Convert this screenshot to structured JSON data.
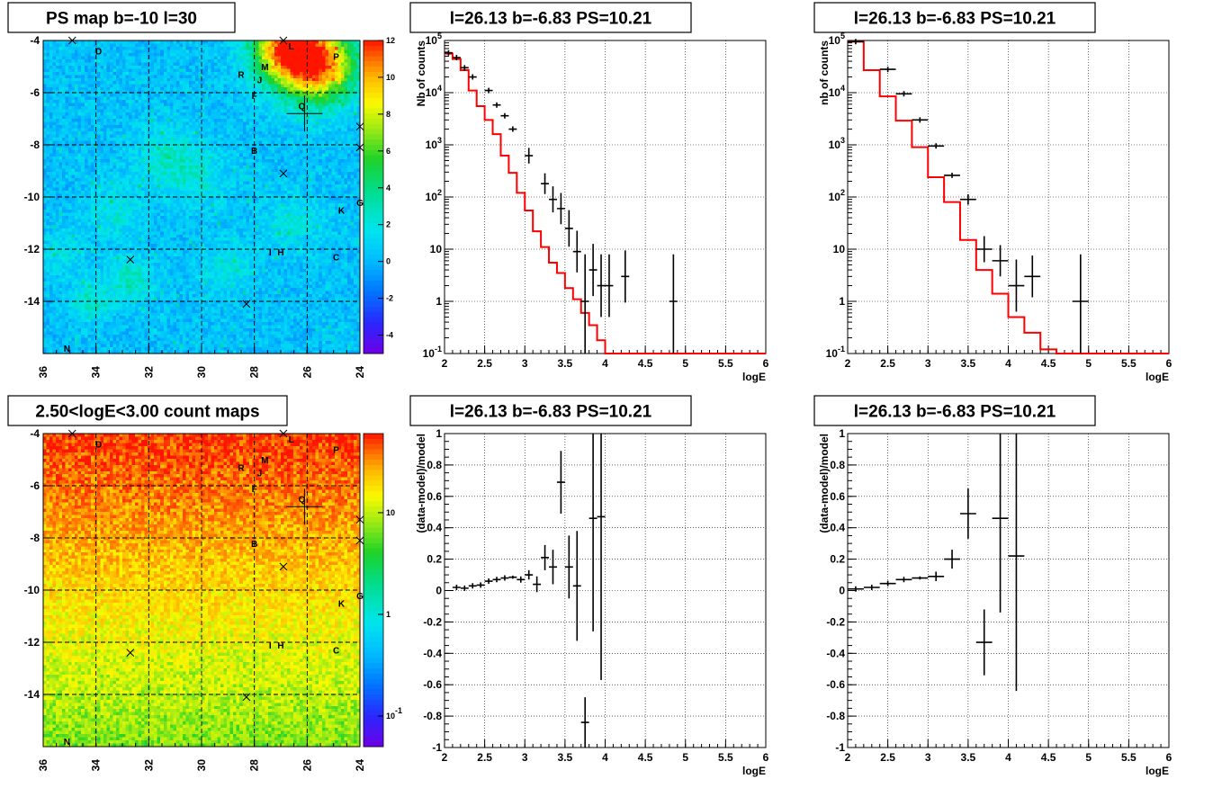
{
  "colors": {
    "hist_model": "#ff0000",
    "data": "#000000",
    "grid": "#000000",
    "frame": "#000000"
  },
  "chart_data": [
    {
      "type": "heatmap",
      "title": "PS map b=-10 l=30",
      "x_ticks": [
        "36",
        "34",
        "32",
        "30",
        "28",
        "26",
        "24"
      ],
      "y_ticks": [
        "-4",
        "-6",
        "-8",
        "-10",
        "-12",
        "-14"
      ],
      "xlim": [
        36,
        24
      ],
      "ylim": [
        -16,
        -4
      ],
      "palette_scale": "linear",
      "colorbar_ticks": [
        "12",
        "10",
        "8",
        "6",
        "4",
        "2",
        "0",
        "-2",
        "-4"
      ],
      "colorbar_range": [
        -5,
        12
      ],
      "sources": [
        {
          "label": "D",
          "l": 33.9,
          "b": -4.4
        },
        {
          "label": "L",
          "l": 26.6,
          "b": -4.2
        },
        {
          "label": "M",
          "l": 27.6,
          "b": -5.0
        },
        {
          "label": "P",
          "l": 24.9,
          "b": -4.6
        },
        {
          "label": "R",
          "l": 28.5,
          "b": -5.3
        },
        {
          "label": "J",
          "l": 27.8,
          "b": -5.5
        },
        {
          "label": "F",
          "l": 28.0,
          "b": -6.1
        },
        {
          "label": "Q",
          "l": 26.2,
          "b": -6.5
        },
        {
          "label": "B",
          "l": 28.0,
          "b": -8.2
        },
        {
          "label": "K",
          "l": 24.7,
          "b": -10.5
        },
        {
          "label": "G",
          "l": 24.0,
          "b": -10.2
        },
        {
          "label": "I",
          "l": 27.4,
          "b": -12.1
        },
        {
          "label": "H",
          "l": 27.0,
          "b": -12.1
        },
        {
          "label": "C",
          "l": 24.9,
          "b": -12.3
        },
        {
          "label": "N",
          "l": 35.1,
          "b": -15.8
        }
      ],
      "markers": [
        {
          "l": 34.9,
          "b": -4.0
        },
        {
          "l": 26.9,
          "b": -4.0
        },
        {
          "l": 26.9,
          "b": -9.1
        },
        {
          "l": 32.7,
          "b": -12.4
        },
        {
          "l": 28.3,
          "b": -14.1
        },
        {
          "l": 24.0,
          "b": -7.3
        },
        {
          "l": 24.0,
          "b": -8.1
        }
      ],
      "crosshair": {
        "l": 26.1,
        "b": -6.8
      }
    },
    {
      "type": "line",
      "title": "l=26.13 b=-6.83 PS=10.21",
      "xlabel": "logE",
      "ylabel": "Nb of counts",
      "xlim": [
        2,
        6
      ],
      "ylim": [
        0.1,
        100000
      ],
      "y_scale": "log",
      "x_ticks": [
        "2",
        "2.5",
        "3",
        "3.5",
        "4",
        "4.5",
        "5",
        "5.5",
        "6"
      ],
      "y_ticks": [
        "10^-1",
        "1",
        "10",
        "10^2",
        "10^3",
        "10^4",
        "10^5"
      ],
      "model_step": {
        "bin_width": 0.1,
        "start": 2.0,
        "values": [
          56000,
          44000,
          27000,
          11000,
          5500,
          3000,
          1600,
          620,
          290,
          120,
          55,
          22,
          11,
          5.5,
          3.5,
          1.8,
          1.1,
          0.6,
          0.35,
          0.18,
          0.1,
          0.1,
          0.1,
          0.1,
          0.1,
          0.1,
          0.1,
          0.1,
          0.1,
          0.1,
          0.1,
          0.1,
          0.1,
          0.1,
          0.1,
          0.1,
          0.1,
          0.1,
          0.1,
          0.1
        ]
      },
      "points": [
        {
          "x": 2.05,
          "y": 58000,
          "dx": 0.05,
          "err": 0
        },
        {
          "x": 2.15,
          "y": 47000,
          "dx": 0.05,
          "err": 0
        },
        {
          "x": 2.25,
          "y": 30000,
          "dx": 0.05,
          "err": 0
        },
        {
          "x": 2.35,
          "y": 20000,
          "dx": 0.05,
          "err": 0
        },
        {
          "x": 2.55,
          "y": 11000,
          "dx": 0.05,
          "err": 0
        },
        {
          "x": 2.65,
          "y": 5800,
          "dx": 0.05,
          "err": 0
        },
        {
          "x": 2.75,
          "y": 3600,
          "dx": 0.05,
          "err": 0
        },
        {
          "x": 2.85,
          "y": 2000,
          "dx": 0.05,
          "err": 0
        },
        {
          "x": 3.05,
          "y": 620,
          "dx": 0.05,
          "err": 0.15
        },
        {
          "x": 3.25,
          "y": 180,
          "dx": 0.05,
          "err": 0.2
        },
        {
          "x": 3.35,
          "y": 90,
          "dx": 0.05,
          "err": 0.25
        },
        {
          "x": 3.45,
          "y": 60,
          "dx": 0.05,
          "err": 0.3
        },
        {
          "x": 3.55,
          "y": 25,
          "dx": 0.05,
          "err": 0.35
        },
        {
          "x": 3.65,
          "y": 9,
          "dx": 0.05,
          "err": 0.4
        },
        {
          "x": 3.75,
          "y": 1,
          "dx": 0.05,
          "err": 0.9
        },
        {
          "x": 3.85,
          "y": 4,
          "dx": 0.05,
          "err": 0.5
        },
        {
          "x": 3.95,
          "y": 2,
          "dx": 0.05,
          "err": 0.6
        },
        {
          "x": 4.05,
          "y": 2,
          "dx": 0.05,
          "err": 0.6
        },
        {
          "x": 4.25,
          "y": 3,
          "dx": 0.05,
          "err": 0.5
        },
        {
          "x": 4.85,
          "y": 1,
          "dx": 0.05,
          "err": 0.9
        }
      ]
    },
    {
      "type": "line",
      "title": "l=26.13 b=-6.83 PS=10.21",
      "xlabel": "logE",
      "ylabel": "nb of counts",
      "xlim": [
        2,
        6
      ],
      "ylim": [
        0.1,
        100000
      ],
      "y_scale": "log",
      "x_ticks": [
        "2",
        "2.5",
        "3",
        "3.5",
        "4",
        "4.5",
        "5",
        "5.5",
        "6"
      ],
      "y_ticks": [
        "10^-1",
        "1",
        "10",
        "10^2",
        "10^3",
        "10^4",
        "10^5"
      ],
      "model_step": {
        "bin_width": 0.2,
        "start": 2.0,
        "values": [
          95000,
          27000,
          8500,
          2900,
          900,
          240,
          80,
          15,
          4,
          1.4,
          0.5,
          0.25,
          0.12,
          0.1,
          0.1,
          0.1,
          0.1,
          0.1,
          0.1,
          0.1
        ]
      },
      "points": [
        {
          "x": 2.1,
          "y": 95000,
          "dx": 0.1,
          "err": 0
        },
        {
          "x": 2.5,
          "y": 28000,
          "dx": 0.1,
          "err": 0
        },
        {
          "x": 2.7,
          "y": 9500,
          "dx": 0.1,
          "err": 0
        },
        {
          "x": 2.9,
          "y": 3000,
          "dx": 0.1,
          "err": 0
        },
        {
          "x": 3.1,
          "y": 950,
          "dx": 0.1,
          "err": 0
        },
        {
          "x": 3.3,
          "y": 260,
          "dx": 0.1,
          "err": 0.05
        },
        {
          "x": 3.5,
          "y": 90,
          "dx": 0.1,
          "err": 0.1
        },
        {
          "x": 3.7,
          "y": 10,
          "dx": 0.1,
          "err": 0.25
        },
        {
          "x": 3.9,
          "y": 6,
          "dx": 0.1,
          "err": 0.3
        },
        {
          "x": 4.1,
          "y": 2,
          "dx": 0.1,
          "err": 0.5
        },
        {
          "x": 4.3,
          "y": 3,
          "dx": 0.1,
          "err": 0.4
        },
        {
          "x": 4.9,
          "y": 1,
          "dx": 0.1,
          "err": 0.9
        }
      ]
    },
    {
      "type": "heatmap",
      "title": "2.50<logE<3.00 count maps",
      "x_ticks": [
        "36",
        "34",
        "32",
        "30",
        "28",
        "26",
        "24"
      ],
      "y_ticks": [
        "-4",
        "-6",
        "-8",
        "-10",
        "-12",
        "-14"
      ],
      "xlim": [
        36,
        24
      ],
      "ylim": [
        -16,
        -4
      ],
      "palette_scale": "log",
      "colorbar_ticks": [
        "10",
        "1",
        "10^-1"
      ],
      "colorbar_range": [
        0.05,
        60
      ],
      "sources": [
        {
          "label": "D",
          "l": 33.9,
          "b": -4.4
        },
        {
          "label": "L",
          "l": 26.6,
          "b": -4.2
        },
        {
          "label": "M",
          "l": 27.6,
          "b": -5.0
        },
        {
          "label": "P",
          "l": 24.9,
          "b": -4.6
        },
        {
          "label": "R",
          "l": 28.5,
          "b": -5.3
        },
        {
          "label": "J",
          "l": 27.8,
          "b": -5.5
        },
        {
          "label": "F",
          "l": 28.0,
          "b": -6.1
        },
        {
          "label": "Q",
          "l": 26.2,
          "b": -6.5
        },
        {
          "label": "B",
          "l": 28.0,
          "b": -8.2
        },
        {
          "label": "K",
          "l": 24.7,
          "b": -10.5
        },
        {
          "label": "G",
          "l": 24.0,
          "b": -10.2
        },
        {
          "label": "I",
          "l": 27.4,
          "b": -12.1
        },
        {
          "label": "H",
          "l": 27.0,
          "b": -12.1
        },
        {
          "label": "C",
          "l": 24.9,
          "b": -12.3
        },
        {
          "label": "N",
          "l": 35.1,
          "b": -15.8
        }
      ],
      "markers": [
        {
          "l": 34.9,
          "b": -4.0
        },
        {
          "l": 26.9,
          "b": -4.0
        },
        {
          "l": 26.9,
          "b": -9.1
        },
        {
          "l": 32.7,
          "b": -12.4
        },
        {
          "l": 28.3,
          "b": -14.1
        },
        {
          "l": 24.0,
          "b": -7.3
        },
        {
          "l": 24.0,
          "b": -8.1
        }
      ],
      "crosshair": {
        "l": 26.1,
        "b": -6.8
      }
    },
    {
      "type": "scatter",
      "title": "l=26.13 b=-6.83 PS=10.21",
      "xlabel": "logE",
      "ylabel": "(data-model)/model",
      "xlim": [
        2,
        6
      ],
      "ylim": [
        -1,
        1
      ],
      "x_ticks": [
        "2",
        "2.5",
        "3",
        "3.5",
        "4",
        "4.5",
        "5",
        "5.5",
        "6"
      ],
      "y_ticks": [
        "-1",
        "-0.8",
        "-0.6",
        "-0.4",
        "-0.2",
        "0",
        "0.2",
        "0.4",
        "0.6",
        "0.8",
        "1"
      ],
      "points": [
        {
          "x": 2.15,
          "y": 0.02,
          "dx": 0.05,
          "err": 0
        },
        {
          "x": 2.25,
          "y": 0.015,
          "dx": 0.05,
          "err": 0
        },
        {
          "x": 2.35,
          "y": 0.03,
          "dx": 0.05,
          "err": 0
        },
        {
          "x": 2.45,
          "y": 0.035,
          "dx": 0.05,
          "err": 0
        },
        {
          "x": 2.55,
          "y": 0.06,
          "dx": 0.05,
          "err": 0
        },
        {
          "x": 2.65,
          "y": 0.07,
          "dx": 0.05,
          "err": 0
        },
        {
          "x": 2.75,
          "y": 0.08,
          "dx": 0.05,
          "err": 0
        },
        {
          "x": 2.85,
          "y": 0.085,
          "dx": 0.05,
          "err": 0.01
        },
        {
          "x": 2.95,
          "y": 0.07,
          "dx": 0.05,
          "err": 0.02
        },
        {
          "x": 3.05,
          "y": 0.1,
          "dx": 0.05,
          "err": 0.03
        },
        {
          "x": 3.15,
          "y": 0.04,
          "dx": 0.05,
          "err": 0.05
        },
        {
          "x": 3.25,
          "y": 0.21,
          "dx": 0.05,
          "err": 0.08
        },
        {
          "x": 3.35,
          "y": 0.15,
          "dx": 0.05,
          "err": 0.11
        },
        {
          "x": 3.45,
          "y": 0.69,
          "dx": 0.05,
          "err": 0.2
        },
        {
          "x": 3.55,
          "y": 0.15,
          "dx": 0.05,
          "err": 0.2
        },
        {
          "x": 3.65,
          "y": 0.03,
          "dx": 0.05,
          "err": 0.35
        },
        {
          "x": 3.75,
          "y": -0.84,
          "dx": 0.05,
          "err": 0.16
        },
        {
          "x": 3.85,
          "y": 0.46,
          "dx": 0.05,
          "err": 0.72
        },
        {
          "x": 3.95,
          "y": 0.47,
          "dx": 0.05,
          "err": 1.04
        }
      ]
    },
    {
      "type": "scatter",
      "title": "l=26.13 b=-6.83 PS=10.21",
      "xlabel": "logE",
      "ylabel": "(data-model)/model",
      "xlim": [
        2,
        6
      ],
      "ylim": [
        -1,
        1
      ],
      "x_ticks": [
        "2",
        "2.5",
        "3",
        "3.5",
        "4",
        "4.5",
        "5",
        "5.5",
        "6"
      ],
      "y_ticks": [
        "-1",
        "-0.8",
        "-0.6",
        "-0.4",
        "-0.2",
        "0",
        "0.2",
        "0.4",
        "0.6",
        "0.8",
        "1"
      ],
      "points": [
        {
          "x": 2.1,
          "y": 0.01,
          "dx": 0.1,
          "err": 0
        },
        {
          "x": 2.3,
          "y": 0.02,
          "dx": 0.1,
          "err": 0
        },
        {
          "x": 2.5,
          "y": 0.045,
          "dx": 0.1,
          "err": 0
        },
        {
          "x": 2.7,
          "y": 0.07,
          "dx": 0.1,
          "err": 0
        },
        {
          "x": 2.9,
          "y": 0.08,
          "dx": 0.1,
          "err": 0.01
        },
        {
          "x": 3.1,
          "y": 0.09,
          "dx": 0.1,
          "err": 0.03
        },
        {
          "x": 3.3,
          "y": 0.2,
          "dx": 0.1,
          "err": 0.06
        },
        {
          "x": 3.5,
          "y": 0.49,
          "dx": 0.1,
          "err": 0.16
        },
        {
          "x": 3.7,
          "y": -0.33,
          "dx": 0.1,
          "err": 0.21
        },
        {
          "x": 3.9,
          "y": 0.46,
          "dx": 0.1,
          "err": 0.6
        },
        {
          "x": 4.1,
          "y": 0.22,
          "dx": 0.1,
          "err": 0.86
        }
      ]
    }
  ]
}
